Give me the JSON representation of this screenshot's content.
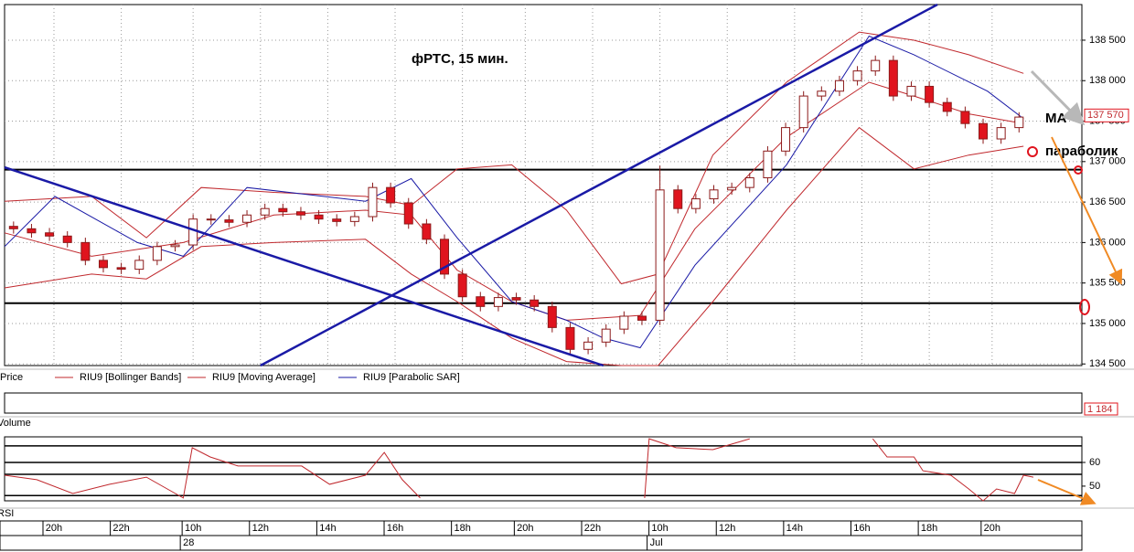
{
  "chart_data": {
    "type": "candlestick",
    "title": "фРТС,  15 мин.",
    "xlim": [
      0,
      120
    ],
    "ylim": [
      134480,
      138940
    ],
    "yticks": [
      {
        "value": 134500,
        "label": "134 500"
      },
      {
        "value": 135000,
        "label": "135 000"
      },
      {
        "value": 135500,
        "label": "135 500"
      },
      {
        "value": 136000,
        "label": "136 000"
      },
      {
        "value": 136500,
        "label": "136 500"
      },
      {
        "value": 137000,
        "label": "137 000"
      },
      {
        "value": 137500,
        "label": "137 500"
      },
      {
        "value": 138000,
        "label": "138 000"
      },
      {
        "value": 138500,
        "label": "138 500"
      }
    ],
    "xticks": [
      {
        "value": 5.5,
        "label": "20h"
      },
      {
        "value": 13,
        "label": "22h"
      },
      {
        "value": 21,
        "label": "10h"
      },
      {
        "value": 28.5,
        "label": "12h"
      },
      {
        "value": 36,
        "label": "14h"
      },
      {
        "value": 43.5,
        "label": "16h"
      },
      {
        "value": 51,
        "label": "18h"
      },
      {
        "value": 58,
        "label": "20h"
      },
      {
        "value": 65.5,
        "label": "22h"
      },
      {
        "value": 73,
        "label": "10h"
      },
      {
        "value": 80.5,
        "label": "12h"
      },
      {
        "value": 88,
        "label": "14h"
      },
      {
        "value": 95.5,
        "label": "16h"
      },
      {
        "value": 103,
        "label": "18h"
      },
      {
        "value": 110,
        "label": "20h"
      }
    ],
    "xticks_days": [
      {
        "value": 21,
        "label": "28"
      },
      {
        "value": 73,
        "label": "Jul"
      }
    ],
    "grid": true,
    "up_color": "#ffffff",
    "down_color": "#e0141e",
    "candle_edge": "#8b1a1a",
    "legend_price": "Price",
    "candles": {
      "x": [
        1,
        3,
        5,
        7,
        9,
        11,
        13,
        15,
        17,
        19,
        21,
        23,
        25,
        27,
        29,
        31,
        33,
        35,
        37,
        39,
        41,
        43,
        45,
        47,
        49,
        51,
        53,
        55,
        57,
        59,
        61,
        63,
        65,
        67,
        69,
        71,
        73,
        75,
        77,
        79,
        81,
        83,
        85,
        87,
        89,
        91,
        93,
        95,
        97,
        99,
        101,
        103,
        105,
        107,
        109,
        111,
        113
      ],
      "open": [
        136200,
        136170,
        136120,
        136080,
        136000,
        135780,
        135690,
        135670,
        135780,
        135950,
        135970,
        136290,
        136280,
        136250,
        136340,
        136420,
        136380,
        136340,
        136290,
        136260,
        136320,
        136680,
        136490,
        136230,
        136040,
        135610,
        135330,
        135210,
        135320,
        135290,
        135210,
        134950,
        134680,
        134770,
        134930,
        135090,
        135040,
        136650,
        136420,
        136540,
        136650,
        136680,
        136800,
        137130,
        137420,
        137810,
        137870,
        138000,
        138120,
        138250,
        137810,
        137930,
        137730,
        137620,
        137470,
        137280,
        137420
      ],
      "high": [
        136260,
        136230,
        136180,
        136140,
        136060,
        135840,
        135750,
        135840,
        136010,
        136030,
        136350,
        136350,
        136340,
        136400,
        136480,
        136480,
        136440,
        136400,
        136350,
        136380,
        136740,
        136740,
        136550,
        136290,
        136100,
        135670,
        135390,
        135380,
        135380,
        135350,
        135270,
        135010,
        134830,
        134990,
        135150,
        135150,
        136950,
        136710,
        136600,
        136710,
        136740,
        136860,
        137190,
        137480,
        137870,
        137930,
        138060,
        138180,
        138310,
        138310,
        137990,
        137990,
        137790,
        137680,
        137530,
        137480,
        137610
      ],
      "low": [
        136110,
        136060,
        136020,
        135940,
        135720,
        135630,
        135610,
        135610,
        135720,
        135890,
        135910,
        136220,
        136190,
        136190,
        136280,
        136320,
        136280,
        136230,
        136200,
        136200,
        136260,
        136430,
        136170,
        135980,
        135550,
        135270,
        135150,
        135150,
        135230,
        135150,
        134890,
        134620,
        134620,
        134710,
        134870,
        134980,
        134980,
        136360,
        136360,
        136480,
        136590,
        136620,
        136740,
        137070,
        137360,
        137750,
        137810,
        137940,
        138060,
        137750,
        137750,
        137670,
        137560,
        137410,
        137220,
        137220,
        137360
      ],
      "close": [
        136170,
        136120,
        136080,
        136000,
        135780,
        135690,
        135670,
        135780,
        135950,
        135970,
        136290,
        136280,
        136250,
        136340,
        136420,
        136380,
        136340,
        136290,
        136260,
        136320,
        136680,
        136490,
        136230,
        136040,
        135610,
        135330,
        135210,
        135320,
        135290,
        135210,
        134950,
        134680,
        134770,
        134930,
        135090,
        135040,
        136650,
        136420,
        136540,
        136650,
        136680,
        136800,
        137130,
        137420,
        137810,
        137870,
        138000,
        138120,
        138250,
        137810,
        137930,
        137730,
        137620,
        137470,
        137280,
        137420,
        137550
      ]
    },
    "bands": {
      "name": "RIU9 [Bollinger Bands]",
      "color": "#c0282d",
      "x": [
        0,
        9.7,
        15.8,
        21.9,
        30,
        40.2,
        45.3,
        50.4,
        56.5,
        62.6,
        68.7,
        72.8,
        78.9,
        87.1,
        95.2,
        101.3,
        107.4,
        113.5
      ],
      "upper": [
        136510,
        136570,
        136060,
        136680,
        136620,
        136570,
        136460,
        136910,
        136960,
        136400,
        135490,
        135610,
        137080,
        137980,
        138600,
        138500,
        138320,
        138090
      ],
      "lower": [
        135440,
        135610,
        135550,
        135950,
        136000,
        136040,
        135610,
        135270,
        134820,
        134530,
        134480,
        134480,
        135270,
        136400,
        137420,
        136910,
        137080,
        137190
      ]
    },
    "series": [
      {
        "name": "RIU9 [Moving Average]",
        "color": "#c0282d",
        "x": [
          0,
          9.7,
          19.9,
          30,
          40.2,
          45.3,
          50.4,
          56.5,
          62.6,
          70.8,
          76.9,
          87.1,
          96.3,
          101.3,
          107.4,
          113.5
        ],
        "values": [
          136120,
          135830,
          136000,
          136340,
          136400,
          136340,
          135660,
          135270,
          135040,
          135100,
          136170,
          137300,
          137980,
          137810,
          137590,
          137470
        ]
      },
      {
        "name": "RIU9 [Parabolic SAR]",
        "color": "#1a1aa6",
        "x": [
          0,
          5.6,
          14.8,
          19.9,
          27,
          40.2,
          45.3,
          50.4,
          56.5,
          62.6,
          66.7,
          70.8,
          76.9,
          87.1,
          96.3,
          101.3,
          109.5,
          113.5
        ],
        "values": [
          135950,
          136570,
          136000,
          135830,
          136680,
          136510,
          136790,
          136060,
          135270,
          135040,
          134820,
          134700,
          135720,
          136960,
          138550,
          138320,
          137870,
          137530
        ]
      }
    ],
    "hlines": [
      136900,
      135250
    ],
    "trendlines": [
      {
        "x": [
          0,
          66.7
        ],
        "y": [
          136930,
          134480
        ]
      },
      {
        "x": [
          28.5,
          103.9
        ],
        "y": [
          134480,
          138940
        ]
      }
    ],
    "trend_color": "#1a1aa6",
    "last_price": {
      "value": 137570,
      "label": "137 570"
    },
    "annotations": [
      "МА",
      "параболик"
    ],
    "volume": {
      "label": "Volume",
      "last": {
        "value": 1184,
        "label": "1 184"
      }
    },
    "rsi": {
      "label": "RSI",
      "color": "#c0282d",
      "ylim": [
        43.8,
        70.8
      ],
      "yticks": [
        50,
        60
      ],
      "levels": [
        67,
        60,
        55,
        46
      ],
      "x": [
        0,
        3.6,
        7.6,
        11.7,
        15.8,
        19.9,
        20.9,
        22.9,
        26,
        30,
        33.1,
        36.2,
        40.2,
        42.3,
        44.3,
        46.3,
        60,
        71.3,
        71.8,
        74.8,
        78.9,
        83,
        90,
        96.7,
        98.3,
        101.3,
        102.3,
        105.4,
        107.4,
        109,
        110.5,
        112.5,
        113.5,
        114.6
      ],
      "values": [
        54.6,
        52.7,
        46.9,
        50.8,
        53.8,
        45,
        66.2,
        62.3,
        58.5,
        58.5,
        58.5,
        50.8,
        54.6,
        64.2,
        52.7,
        45,
        null,
        45,
        70,
        66.2,
        65.4,
        70,
        null,
        70,
        62.3,
        62.3,
        56.5,
        54.6,
        48.8,
        43.8,
        48.8,
        46.9,
        54.6,
        53.8
      ]
    }
  }
}
